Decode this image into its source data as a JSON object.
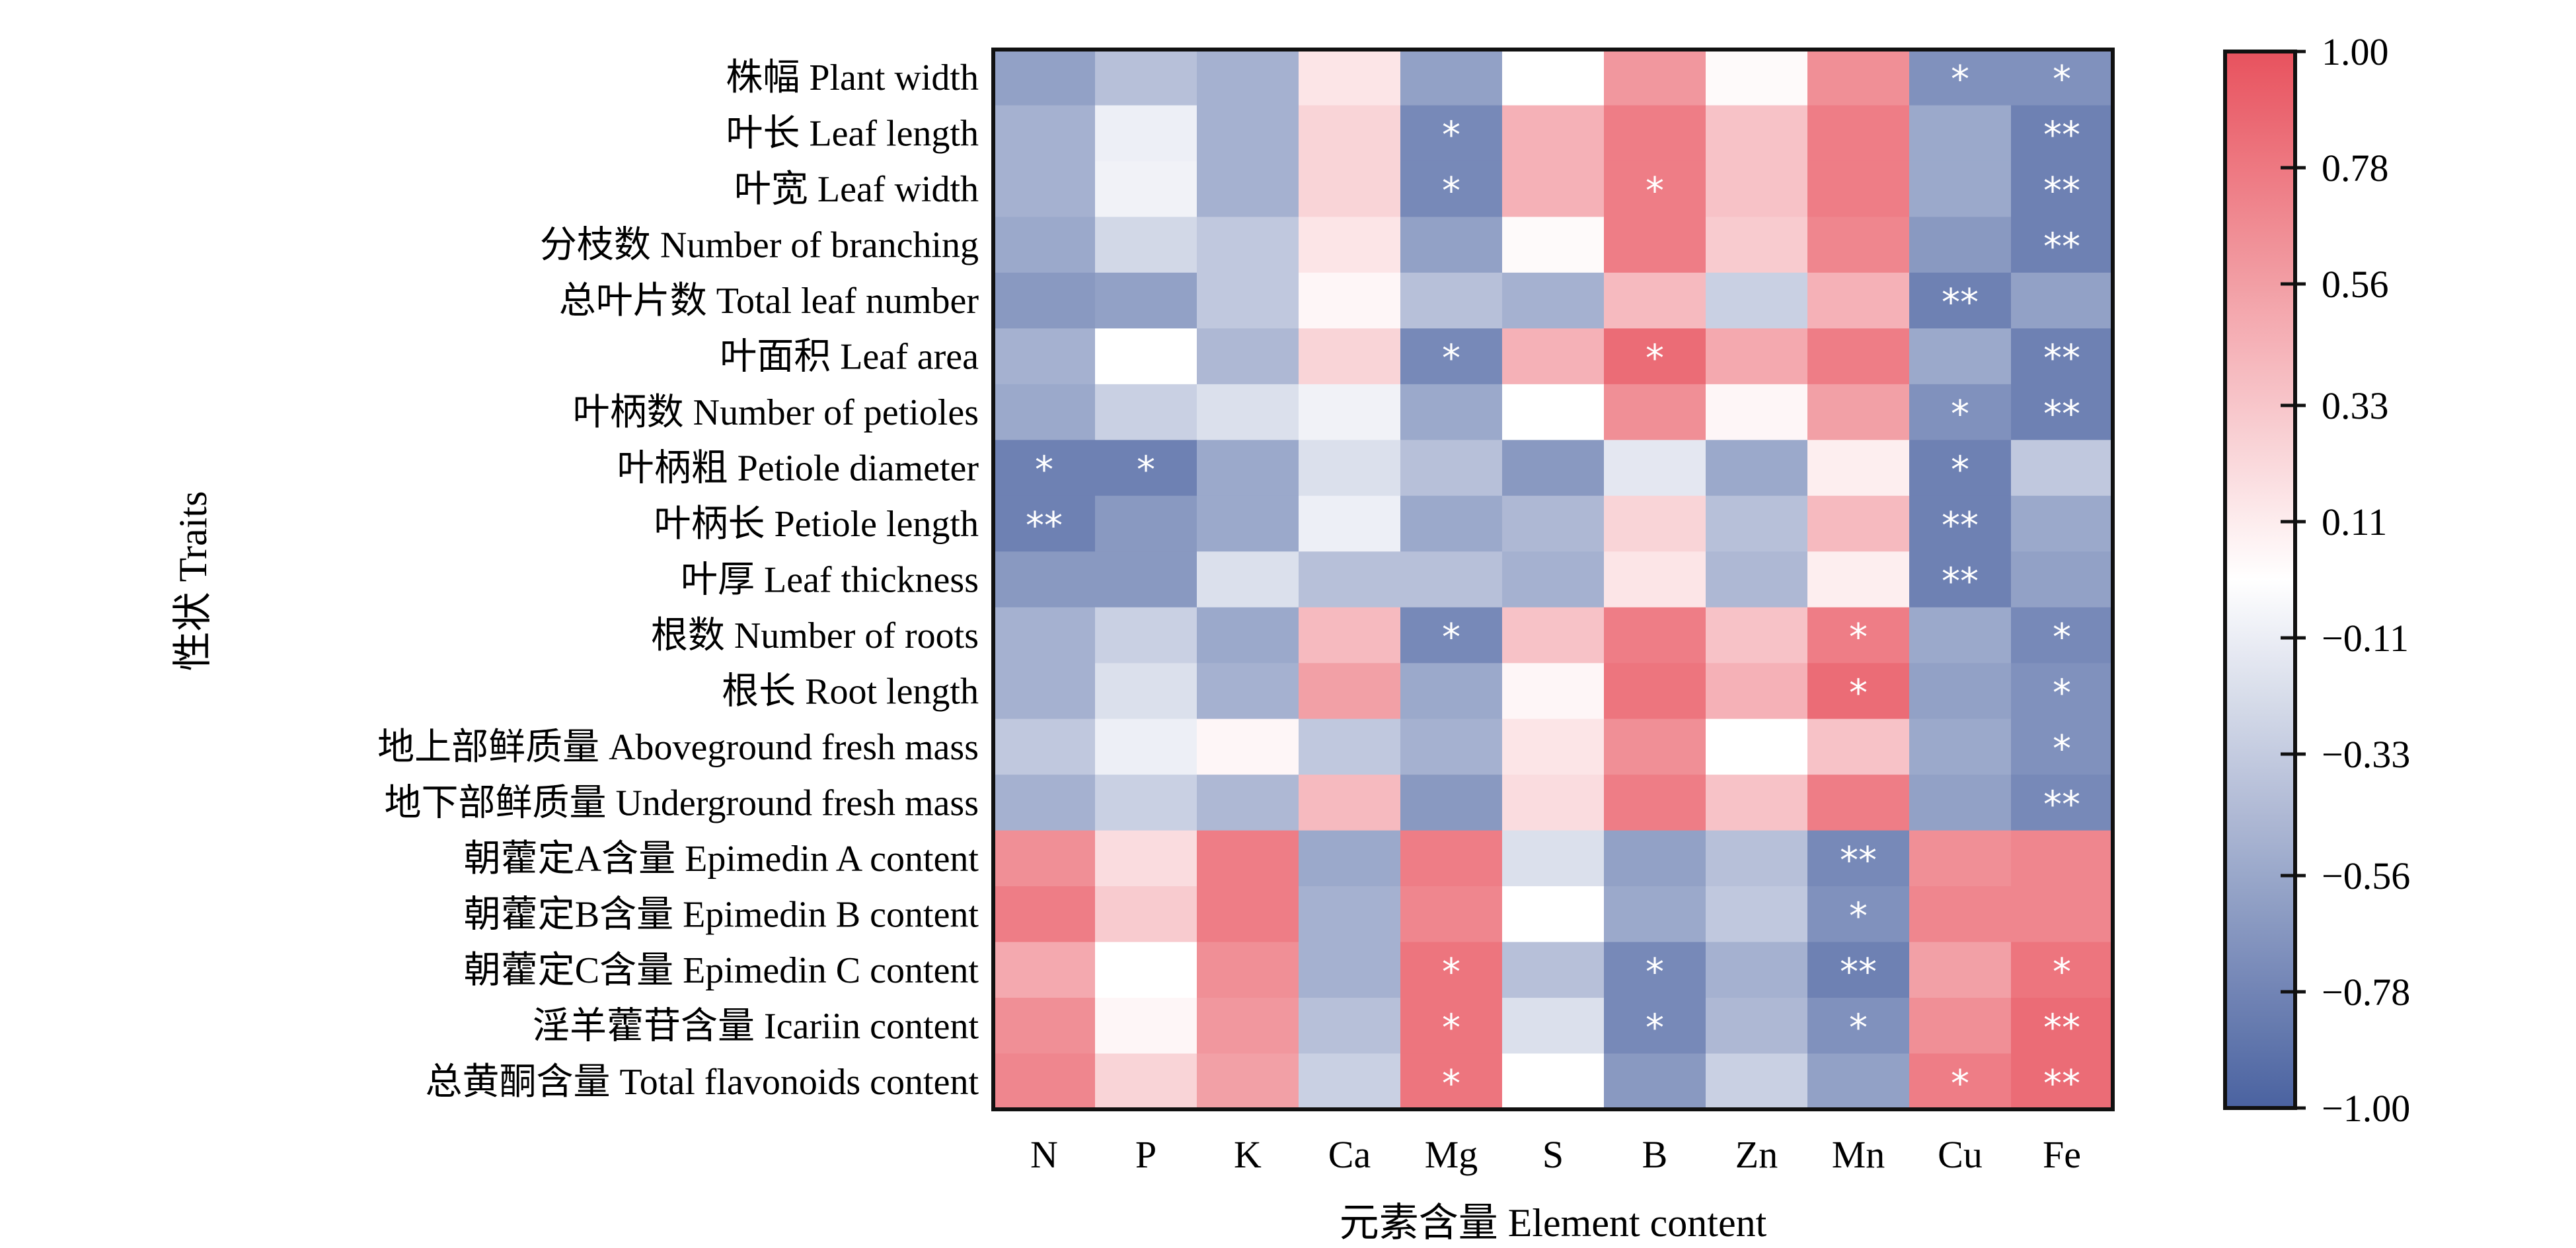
{
  "chart_data": {
    "type": "heatmap",
    "xlabel": "元素含量 Element content",
    "ylabel": "性状 Traits",
    "columns": [
      "N",
      "P",
      "K",
      "Ca",
      "Mg",
      "S",
      "B",
      "Zn",
      "Mn",
      "Cu",
      "Fe"
    ],
    "rows": [
      "株幅 Plant width",
      "叶长 Leaf length",
      "叶宽 Leaf width",
      "分枝数 Number of branching",
      "总叶片数 Total leaf number",
      "叶面积 Leaf area",
      "叶柄数 Number of petioles",
      "叶柄粗 Petiole diameter",
      "叶柄长 Petiole length",
      "叶厚 Leaf thickness",
      "根数 Number of roots",
      "根长 Root length",
      "地上部鲜质量 Aboveground fresh mass",
      "地下部鲜质量 Underground fresh mass",
      "朝藿定A含量 Epimedin A content",
      "朝藿定B含量 Epimedin B content",
      "朝藿定C含量 Epimedin C content",
      "淫羊藿苷含量 Icariin content",
      "总黄酮含量 Total flavonoids content"
    ],
    "values": [
      [
        -0.6,
        -0.4,
        -0.5,
        0.15,
        -0.6,
        0.0,
        0.6,
        0.03,
        0.65,
        -0.7,
        -0.7
      ],
      [
        -0.5,
        -0.1,
        -0.5,
        0.25,
        -0.75,
        0.45,
        0.75,
        0.35,
        0.75,
        -0.55,
        -0.8
      ],
      [
        -0.5,
        -0.08,
        -0.5,
        0.25,
        -0.75,
        0.45,
        0.75,
        0.35,
        0.75,
        -0.55,
        -0.8
      ],
      [
        -0.55,
        -0.25,
        -0.35,
        0.15,
        -0.6,
        0.03,
        0.75,
        0.3,
        0.7,
        -0.65,
        -0.8
      ],
      [
        -0.65,
        -0.6,
        -0.35,
        0.05,
        -0.4,
        -0.5,
        0.4,
        -0.3,
        0.45,
        -0.8,
        -0.6
      ],
      [
        -0.5,
        0.0,
        -0.45,
        0.25,
        -0.75,
        0.45,
        0.85,
        0.5,
        0.75,
        -0.55,
        -0.8
      ],
      [
        -0.55,
        -0.3,
        -0.2,
        -0.08,
        -0.55,
        0.0,
        0.65,
        0.05,
        0.55,
        -0.7,
        -0.8
      ],
      [
        -0.8,
        -0.8,
        -0.55,
        -0.2,
        -0.4,
        -0.65,
        -0.15,
        -0.55,
        0.1,
        -0.8,
        -0.35
      ],
      [
        -0.8,
        -0.65,
        -0.55,
        -0.1,
        -0.55,
        -0.45,
        0.25,
        -0.4,
        0.4,
        -0.8,
        -0.55
      ],
      [
        -0.65,
        -0.65,
        -0.2,
        -0.4,
        -0.4,
        -0.5,
        0.15,
        -0.45,
        0.1,
        -0.8,
        -0.6
      ],
      [
        -0.5,
        -0.3,
        -0.55,
        0.4,
        -0.75,
        0.35,
        0.75,
        0.35,
        0.75,
        -0.55,
        -0.75
      ],
      [
        -0.5,
        -0.2,
        -0.5,
        0.55,
        -0.55,
        0.05,
        0.8,
        0.45,
        0.85,
        -0.6,
        -0.7
      ],
      [
        -0.35,
        -0.1,
        0.05,
        -0.35,
        -0.5,
        0.15,
        0.65,
        0.0,
        0.35,
        -0.55,
        -0.7
      ],
      [
        -0.5,
        -0.3,
        -0.45,
        0.4,
        -0.65,
        0.2,
        0.75,
        0.35,
        0.75,
        -0.6,
        -0.75
      ],
      [
        0.65,
        0.2,
        0.75,
        -0.55,
        0.75,
        -0.2,
        -0.6,
        -0.4,
        -0.75,
        0.65,
        0.7
      ],
      [
        0.75,
        0.3,
        0.75,
        -0.5,
        0.7,
        0.0,
        -0.55,
        -0.35,
        -0.7,
        0.7,
        0.7
      ],
      [
        0.5,
        0.0,
        0.65,
        -0.5,
        0.8,
        -0.4,
        -0.75,
        -0.5,
        -0.8,
        0.55,
        0.8
      ],
      [
        0.65,
        0.05,
        0.6,
        -0.4,
        0.8,
        -0.2,
        -0.75,
        -0.45,
        -0.7,
        0.65,
        0.85
      ],
      [
        0.7,
        0.25,
        0.55,
        -0.3,
        0.8,
        0.0,
        -0.65,
        -0.3,
        -0.6,
        0.75,
        0.85
      ]
    ],
    "significance": [
      [
        "",
        "",
        "",
        "",
        "",
        "",
        "",
        "",
        "",
        "*",
        "*"
      ],
      [
        "",
        "",
        "",
        "",
        "*",
        "",
        "",
        "",
        "",
        "",
        "**"
      ],
      [
        "",
        "",
        "",
        "",
        "*",
        "",
        "*",
        "",
        "",
        "",
        "**"
      ],
      [
        "",
        "",
        "",
        "",
        "",
        "",
        "",
        "",
        "",
        "",
        "**"
      ],
      [
        "",
        "",
        "",
        "",
        "",
        "",
        "",
        "",
        "",
        "**",
        ""
      ],
      [
        "",
        "",
        "",
        "",
        "*",
        "",
        "*",
        "",
        "",
        "",
        "**"
      ],
      [
        "",
        "",
        "",
        "",
        "",
        "",
        "",
        "",
        "",
        "*",
        "**"
      ],
      [
        "*",
        "*",
        "",
        "",
        "",
        "",
        "",
        "",
        "",
        "*",
        ""
      ],
      [
        "**",
        "",
        "",
        "",
        "",
        "",
        "",
        "",
        "",
        "**",
        ""
      ],
      [
        "",
        "",
        "",
        "",
        "",
        "",
        "",
        "",
        "",
        "**",
        ""
      ],
      [
        "",
        "",
        "",
        "",
        "*",
        "",
        "",
        "",
        "*",
        "",
        "*"
      ],
      [
        "",
        "",
        "",
        "",
        "",
        "",
        "",
        "",
        "*",
        "",
        "*"
      ],
      [
        "",
        "",
        "",
        "",
        "",
        "",
        "",
        "",
        "",
        "",
        "*"
      ],
      [
        "",
        "",
        "",
        "",
        "",
        "",
        "",
        "",
        "",
        "",
        "**"
      ],
      [
        "",
        "",
        "",
        "",
        "",
        "",
        "",
        "",
        "**",
        "",
        ""
      ],
      [
        "",
        "",
        "",
        "",
        "",
        "",
        "",
        "",
        "*",
        "",
        ""
      ],
      [
        "",
        "",
        "",
        "",
        "*",
        "",
        "*",
        "",
        "**",
        "",
        "*"
      ],
      [
        "",
        "",
        "",
        "",
        "*",
        "",
        "*",
        "",
        "*",
        "",
        "**"
      ],
      [
        "",
        "",
        "",
        "",
        "*",
        "",
        "",
        "",
        "",
        "*",
        "**"
      ]
    ],
    "colorbar": {
      "range": [
        -1.0,
        1.0
      ],
      "ticks": [
        "1.00",
        "0.78",
        "0.56",
        "0.33",
        "0.11",
        "−0.11",
        "−0.33",
        "−0.56",
        "−0.78",
        "−1.00"
      ],
      "tick_values": [
        1.0,
        0.78,
        0.56,
        0.33,
        0.11,
        -0.11,
        -0.33,
        -0.56,
        -0.78,
        -1.0
      ],
      "low_color": "#4a62a0",
      "mid_color": "#ffffff",
      "high_color": "#e8525e"
    }
  }
}
